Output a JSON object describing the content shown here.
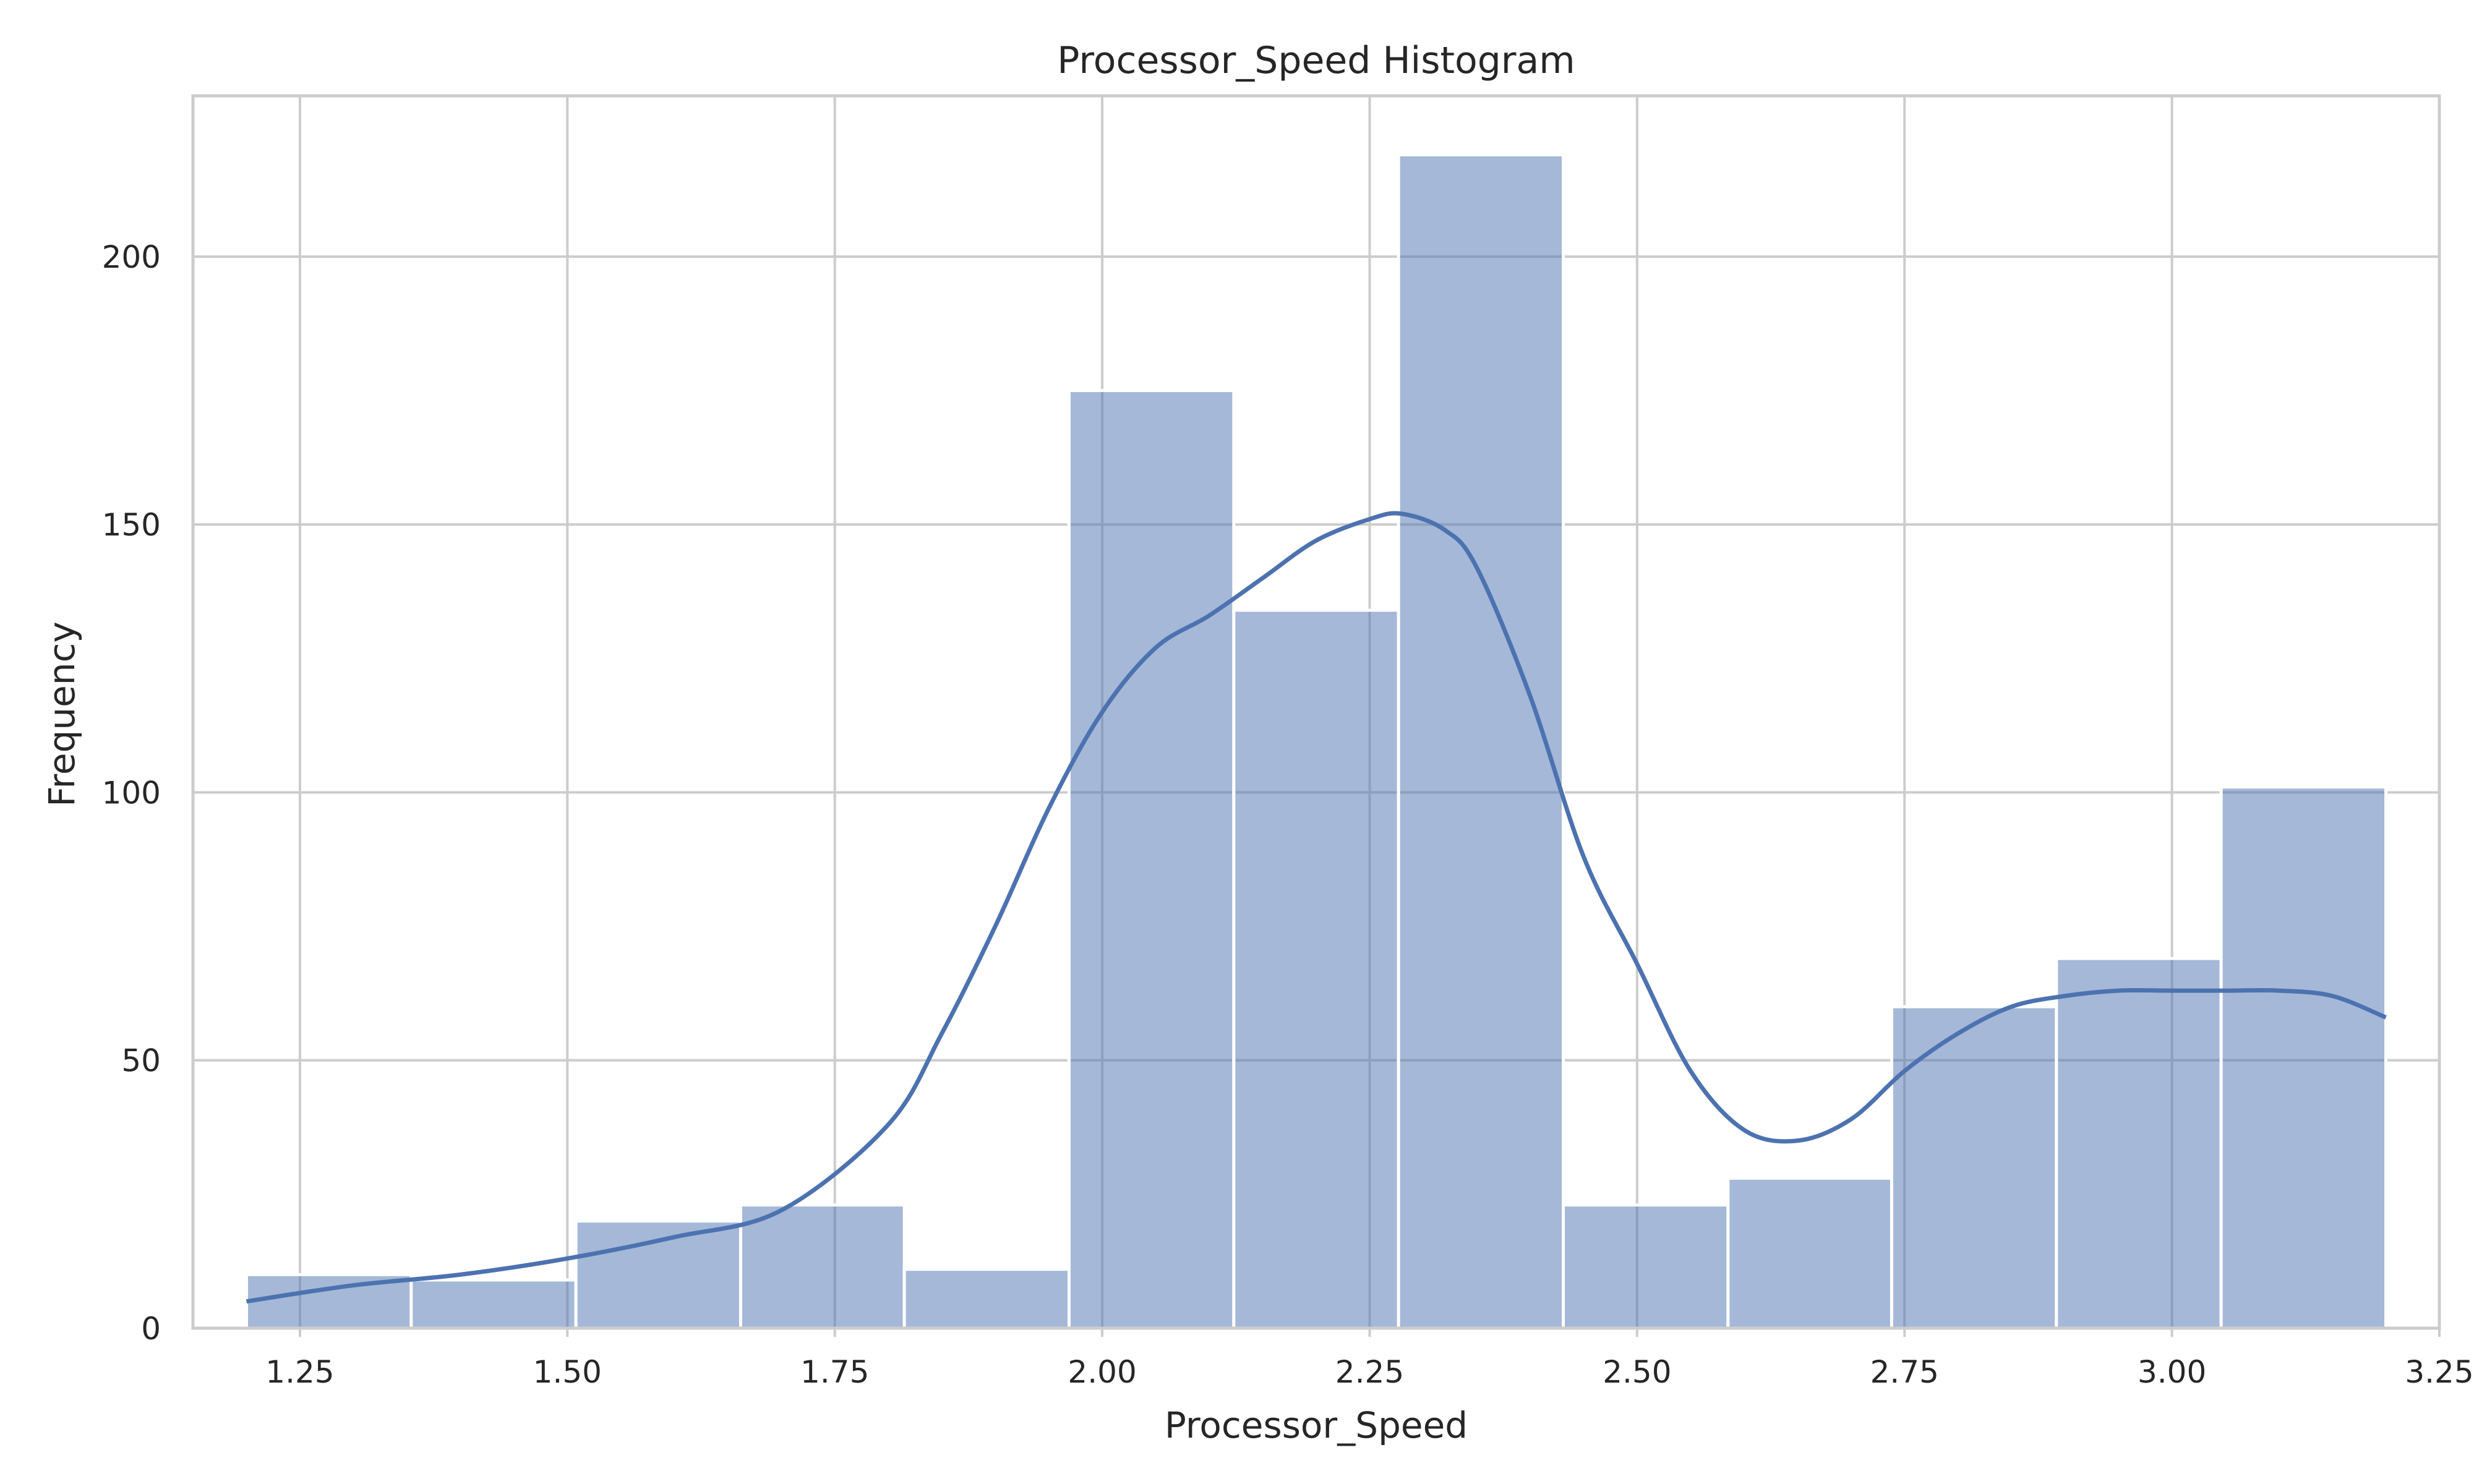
{
  "chart_data": {
    "type": "bar",
    "title": "Processor_Speed Histogram",
    "xlabel": "Processor_Speed",
    "ylabel": "Frequency",
    "xlim": [
      1.15,
      3.25
    ],
    "ylim": [
      0,
      230
    ],
    "xticks": [
      "1.25",
      "1.50",
      "1.75",
      "2.00",
      "2.25",
      "2.50",
      "2.75",
      "3.00",
      "3.25"
    ],
    "xtick_values": [
      1.25,
      1.5,
      1.75,
      2.0,
      2.25,
      2.5,
      2.75,
      3.0,
      3.25
    ],
    "yticks": [
      "0",
      "50",
      "100",
      "150",
      "200"
    ],
    "ytick_values": [
      0,
      50,
      100,
      150,
      200
    ],
    "bins": [
      {
        "start": 1.2,
        "end": 1.354,
        "count": 10
      },
      {
        "start": 1.354,
        "end": 1.508,
        "count": 9
      },
      {
        "start": 1.508,
        "end": 1.662,
        "count": 20
      },
      {
        "start": 1.662,
        "end": 1.815,
        "count": 23
      },
      {
        "start": 1.815,
        "end": 1.969,
        "count": 11
      },
      {
        "start": 1.969,
        "end": 2.123,
        "count": 175
      },
      {
        "start": 2.123,
        "end": 2.277,
        "count": 134
      },
      {
        "start": 2.277,
        "end": 2.431,
        "count": 219
      },
      {
        "start": 2.431,
        "end": 2.585,
        "count": 23
      },
      {
        "start": 2.585,
        "end": 2.738,
        "count": 28
      },
      {
        "start": 2.738,
        "end": 2.892,
        "count": 60
      },
      {
        "start": 2.892,
        "end": 3.046,
        "count": 69
      },
      {
        "start": 3.046,
        "end": 3.2,
        "count": 101
      }
    ],
    "kde": {
      "x": [
        1.2,
        1.3,
        1.4,
        1.5,
        1.6,
        1.7,
        1.8,
        1.85,
        1.9,
        1.95,
        2.0,
        2.05,
        2.1,
        2.15,
        2.2,
        2.25,
        2.28,
        2.32,
        2.35,
        2.4,
        2.45,
        2.5,
        2.55,
        2.6,
        2.65,
        2.7,
        2.75,
        2.8,
        2.85,
        2.9,
        2.95,
        3.0,
        3.05,
        3.1,
        3.15,
        3.2
      ],
      "y": [
        5,
        8,
        10,
        13,
        17,
        22,
        38,
        55,
        75,
        97,
        115,
        127,
        133,
        140,
        147,
        151,
        152,
        149,
        142,
        118,
        88,
        68,
        48,
        37,
        35,
        39,
        48,
        55,
        60,
        62,
        63,
        63,
        63,
        63,
        62,
        58
      ]
    },
    "grid": true,
    "legend": "none"
  }
}
